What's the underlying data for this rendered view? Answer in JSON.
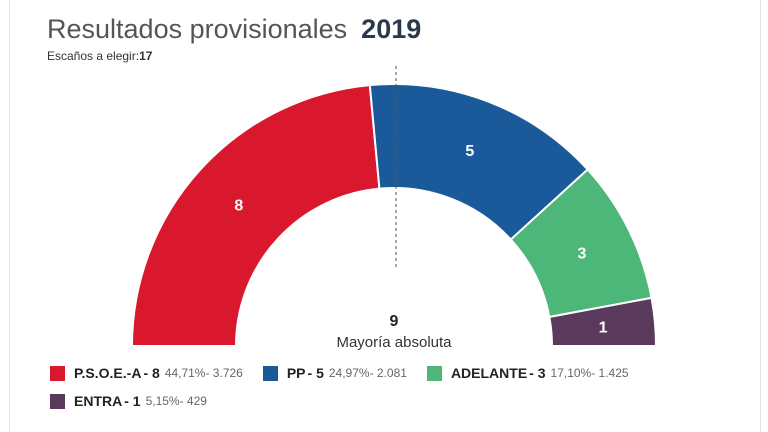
{
  "header": {
    "title": "Resultados provisionales",
    "year": "2019",
    "seats_label": "Escaños a elegir:",
    "seats_total": "17"
  },
  "majority": {
    "value": "9",
    "label": "Mayoría absoluta"
  },
  "colors": {
    "psoe": "#d9182d",
    "pp": "#1b5a9a",
    "adelante": "#4db679",
    "entra": "#5a3a5c"
  },
  "chart_data": {
    "type": "parliament-semicircle",
    "title": "Resultados provisionales",
    "total_seats": 17,
    "majority": 9,
    "series": [
      {
        "name": "P.S.O.E.-A",
        "seats": 8,
        "percent": "44,71%",
        "votes": "3.726",
        "color": "#d9182d"
      },
      {
        "name": "PP",
        "seats": 5,
        "percent": "24,97%",
        "votes": "2.081",
        "color": "#1b5a9a"
      },
      {
        "name": "ADELANTE",
        "seats": 3,
        "percent": "17,10%",
        "votes": "1.425",
        "color": "#4db679"
      },
      {
        "name": "ENTRA",
        "seats": 1,
        "percent": "5,15%",
        "votes": "429",
        "color": "#5a3a5c"
      }
    ]
  },
  "legend": [
    {
      "name": "P.S.O.E.-A",
      "seats": "- 8",
      "detail": "44,71%- 3.726"
    },
    {
      "name": "PP",
      "seats": "- 5",
      "detail": "24,97%- 2.081"
    },
    {
      "name": "ADELANTE",
      "seats": "- 3",
      "detail": "17,10%- 1.425"
    },
    {
      "name": "ENTRA",
      "seats": "- 1",
      "detail": "5,15%- 429"
    }
  ]
}
